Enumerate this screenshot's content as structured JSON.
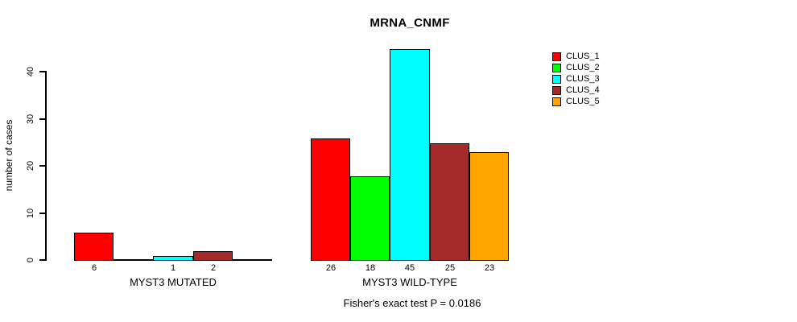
{
  "chart_data": {
    "type": "bar",
    "title": "MRNA_CNMF",
    "ylabel": "number of cases",
    "xlabel": "",
    "ylim": [
      0,
      45
    ],
    "yticks": [
      0,
      10,
      20,
      30,
      40
    ],
    "grid": false,
    "legend_position": "top-right",
    "categories": [
      "MYST3 MUTATED",
      "MYST3 WILD-TYPE"
    ],
    "series": [
      {
        "name": "CLUS_1",
        "color": "#FF0000",
        "values": [
          6,
          26
        ]
      },
      {
        "name": "CLUS_2",
        "color": "#00FF00",
        "values": [
          0,
          18
        ]
      },
      {
        "name": "CLUS_3",
        "color": "#00FFFF",
        "values": [
          1,
          45
        ]
      },
      {
        "name": "CLUS_4",
        "color": "#A52A2A",
        "values": [
          2,
          25
        ]
      },
      {
        "name": "CLUS_5",
        "color": "#FFA500",
        "values": [
          0,
          23
        ]
      }
    ],
    "bar_value_labels_shown": [
      "6",
      "1",
      "2",
      "26",
      "18",
      "45",
      "25",
      "23"
    ],
    "zero_value_labels_hidden": true,
    "annotation": "Fisher's exact test P = 0.0186",
    "axis_color": "#000000",
    "background_color": "#FFFFFF"
  }
}
